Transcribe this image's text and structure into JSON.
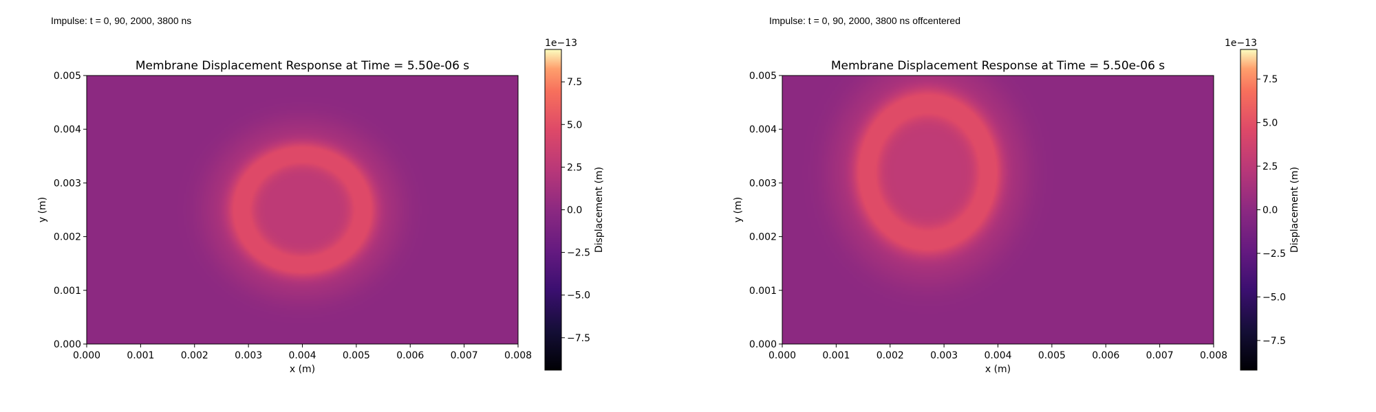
{
  "panels": [
    {
      "caption": "Impulse: t = 0, 90, 2000, 3800 ns",
      "chart_data": {
        "type": "heatmap",
        "title": "Membrane Displacement Response at Time = 5.50e-06 s",
        "xlabel": "x (m)",
        "ylabel": "y (m)",
        "xlim": [
          0,
          0.008
        ],
        "ylim": [
          0,
          0.005
        ],
        "xticks": [
          "0.000",
          "0.001",
          "0.002",
          "0.003",
          "0.004",
          "0.005",
          "0.006",
          "0.007",
          "0.008"
        ],
        "yticks": [
          "0.000",
          "0.001",
          "0.002",
          "0.003",
          "0.004",
          "0.005"
        ],
        "colormap": "magma",
        "colorbar": {
          "label": "Displacement (m)",
          "offset_text": "1e−13",
          "range": [
            -9.4,
            9.4
          ],
          "ticks": [
            "−7.5",
            "−5.0",
            "−2.5",
            "0.0",
            "2.5",
            "5.0",
            "7.5"
          ]
        },
        "field": {
          "background": 0.0,
          "ring": {
            "center": [
              0.004,
              0.0025
            ],
            "radius_x": 0.00115,
            "radius_y": 0.00105,
            "peak": 4.4,
            "outer_halo_radius": 0.0019
          }
        }
      }
    },
    {
      "caption": "Impulse: t = 0, 90, 2000, 3800 ns offcentered",
      "chart_data": {
        "type": "heatmap",
        "title": "Membrane Displacement Response at Time = 5.50e-06 s",
        "xlabel": "x (m)",
        "ylabel": "y (m)",
        "xlim": [
          0,
          0.008
        ],
        "ylim": [
          0,
          0.005
        ],
        "xticks": [
          "0.000",
          "0.001",
          "0.002",
          "0.003",
          "0.004",
          "0.005",
          "0.006",
          "0.007",
          "0.008"
        ],
        "yticks": [
          "0.000",
          "0.001",
          "0.002",
          "0.003",
          "0.004",
          "0.005"
        ],
        "colormap": "magma",
        "colorbar": {
          "label": "Displacement (m)",
          "offset_text": "1e−13",
          "range": [
            -9.2,
            9.2
          ],
          "ticks": [
            "−7.5",
            "−5.0",
            "−2.5",
            "0.0",
            "2.5",
            "5.0",
            "7.5"
          ]
        },
        "field": {
          "background": 0.0,
          "ring": {
            "center": [
              0.0027,
              0.0032
            ],
            "radius_x": 0.00115,
            "radius_y": 0.0013,
            "peak": 4.4,
            "outer_halo_radius": 0.0019
          }
        }
      }
    }
  ]
}
